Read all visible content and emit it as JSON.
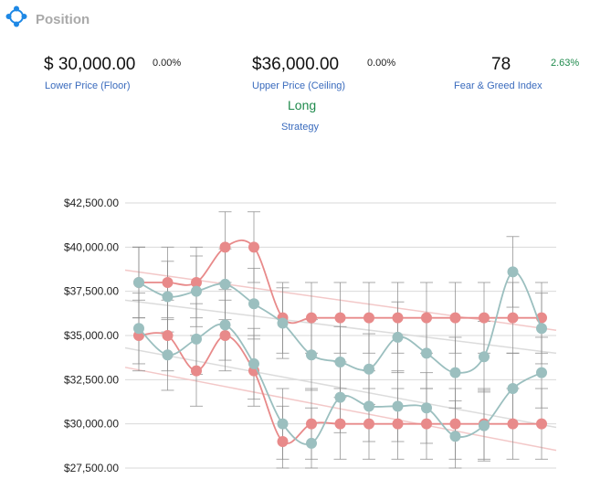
{
  "header": {
    "title": "Position",
    "icon": "position-icon",
    "icon_color": "#1e88e5"
  },
  "metrics": {
    "lower": {
      "value": "$ 30,000.00",
      "change": "0.00%",
      "label": "Lower Price (Floor)"
    },
    "upper": {
      "value": "$36,000.00",
      "change": "0.00%",
      "label": "Upper Price (Ceiling)"
    },
    "fear_greed": {
      "value": "78",
      "change": "2.63%",
      "label": "Fear & Greed Index"
    },
    "strategy": {
      "value": "Long",
      "label": "Strategy"
    }
  },
  "colors": {
    "accent_blue": "#3a6bbd",
    "positive_green": "#1f8a4c",
    "red_series": "#e88a8a",
    "teal_series": "#9bbfbf",
    "error_bar": "#888888"
  },
  "chart_data": {
    "type": "line",
    "y_ticks": [
      "$42,500.00",
      "$40,000.00",
      "$37,500.00",
      "$35,000.00",
      "$32,500.00",
      "$30,000.00",
      "$27,500.00"
    ],
    "y_tick_values": [
      42500,
      40000,
      37500,
      35000,
      32500,
      30000,
      27500
    ],
    "ylim": [
      27500,
      42500
    ],
    "x_count": 15,
    "grid": true,
    "series": [
      {
        "color": "red",
        "values": [
          38000,
          38000,
          38000,
          40000,
          40000,
          36000,
          36000,
          36000,
          36000,
          36000,
          36000,
          36000,
          36000,
          36000,
          36000
        ]
      },
      {
        "color": "red",
        "values": [
          35000,
          35000,
          33000,
          35000,
          33000,
          29000,
          30000,
          30000,
          30000,
          30000,
          30000,
          30000,
          30000,
          30000,
          30000
        ]
      },
      {
        "color": "teal",
        "values": [
          38000,
          37200,
          37500,
          37900,
          36800,
          35700,
          33900,
          33500,
          33100,
          34900,
          34000,
          32900,
          33800,
          38600,
          35400
        ]
      },
      {
        "color": "teal",
        "values": [
          35400,
          33900,
          34800,
          35600,
          33400,
          30000,
          28900,
          31500,
          31000,
          31000,
          30900,
          29300,
          29900,
          32000,
          32900
        ]
      }
    ],
    "trend_lines": [
      {
        "color": "red",
        "start": 38700,
        "end": 35300
      },
      {
        "color": "teal",
        "start": 37000,
        "end": 34000
      },
      {
        "color": "teal",
        "start": 34300,
        "end": 29800
      },
      {
        "color": "red",
        "start": 33200,
        "end": 28500
      }
    ],
    "error_margin": 2000
  }
}
